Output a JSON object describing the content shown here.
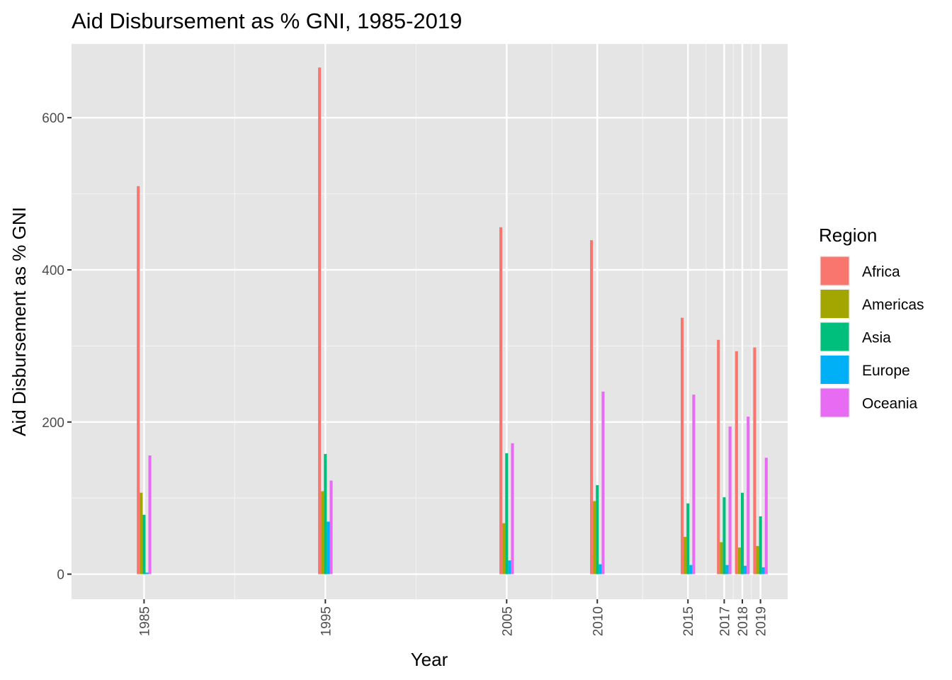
{
  "chart_data": {
    "type": "bar",
    "title": "Aid Disbursement as % GNI, 1985-2019",
    "xlabel": "Year",
    "ylabel": "Aid Disbursement as % GNI",
    "ylim": [
      -33,
      697
    ],
    "xlim": [
      1981,
      2020.5
    ],
    "y_ticks": [
      0,
      200,
      400,
      600
    ],
    "x_ticks": [
      1985,
      1995,
      2005,
      2010,
      2015,
      2017,
      2018,
      2019
    ],
    "x_tick_labels": [
      "1985",
      "1995",
      "2005",
      "2010",
      "2015",
      "2017",
      "2018",
      "2019"
    ],
    "grid": true,
    "background": "#e5e5e5",
    "legend": {
      "title": "Region",
      "position": "right"
    },
    "series": [
      {
        "name": "Africa",
        "color": "#F8766D",
        "values": [
          510,
          666,
          456,
          439,
          337,
          308,
          293,
          298
        ]
      },
      {
        "name": "Americas",
        "color": "#A3A500",
        "values": [
          107,
          109,
          67,
          96,
          49,
          42,
          35,
          37
        ]
      },
      {
        "name": "Asia",
        "color": "#00BF7D",
        "values": [
          78,
          158,
          159,
          117,
          93,
          101,
          107,
          76
        ]
      },
      {
        "name": "Europe",
        "color": "#00B0F6",
        "values": [
          2,
          69,
          18,
          13,
          12,
          12,
          11,
          9
        ]
      },
      {
        "name": "Oceania",
        "color": "#E76BF3",
        "values": [
          156,
          123,
          172,
          240,
          236,
          194,
          207,
          153
        ]
      }
    ]
  }
}
